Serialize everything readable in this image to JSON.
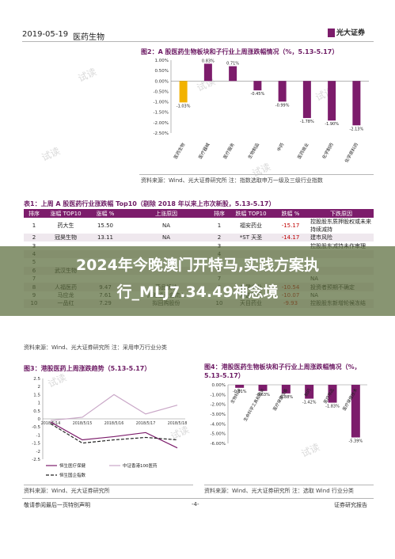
{
  "header": {
    "date": "2019-05-19",
    "category": "医药生物",
    "logo": "光大证券"
  },
  "fig2": {
    "title": "图2：A 股医药生物板块和子行业上周涨跌幅情况（%，5.13-5.17）",
    "source": "资料来源：Wind、光大证券研究所    注：指数选取申万一级及三级行业指数",
    "chart_data": {
      "type": "bar",
      "categories": [
        "医药生物",
        "医疗器械",
        "医疗服务",
        "生物制品",
        "中药",
        "医药商业",
        "化学制药",
        "化学原料药"
      ],
      "values": [
        -1.03,
        0.83,
        0.71,
        -0.45,
        -0.99,
        -1.78,
        -1.9,
        -2.13
      ],
      "value_labels": [
        "-1.03%",
        "0.83%",
        "0.71%",
        "-0.45%",
        "-0.99%",
        "-1.78%",
        "-1.90%",
        "-2.13%"
      ],
      "ylim": [
        -2.5,
        1.0
      ],
      "ytick_labels": [
        "1.00%",
        "0.50%",
        "0.00%",
        "-0.50%",
        "-1.00%",
        "-1.50%",
        "-2.00%",
        "-2.50%"
      ],
      "colors": {
        "highlight": "#f2b200",
        "normal": "#7c1c6b"
      }
    }
  },
  "table1": {
    "title": "表1：上周 A 股医药行业涨跌幅 Top10（剔除 2018 年以来上市次新股，5.13-5.17）",
    "headers": [
      "排序",
      "涨幅 TOP10",
      "涨幅 %",
      "上涨原因",
      "排序",
      "跌幅 TOP10",
      "跌幅 %",
      "下跌原因"
    ],
    "rows": [
      [
        "1",
        "药大生",
        "15.50",
        "NA",
        "1",
        "福安药业",
        "-15.17",
        "控股股东质押股权或未来持续减持"
      ],
      [
        "2",
        "冠昊生物",
        "13.11",
        "NA",
        "2",
        "*ST 天圣",
        "-14.17",
        "建市风险"
      ],
      [
        "3",
        "",
        "",
        "",
        "3",
        "",
        "",
        "控股股东减持未作审理"
      ],
      [
        "4",
        "",
        "",
        "",
        "4",
        "",
        "",
        ""
      ],
      [
        "5",
        "",
        "",
        "",
        "5",
        "",
        "",
        ""
      ],
      [
        "6",
        "武汉生物",
        "",
        "",
        "6",
        "",
        "",
        ""
      ],
      [
        "7",
        "",
        "",
        "",
        "7",
        "",
        "",
        "NA"
      ],
      [
        "8",
        "人福医药",
        "9.47",
        "药品板块",
        "8",
        "金健米业",
        "-10.54",
        "投资者预期不确定"
      ],
      [
        "9",
        "马应龙",
        "7.61",
        "沪港通资金流入",
        "9",
        "方盛制药",
        "-10.07",
        "NA"
      ],
      [
        "10",
        "一品红",
        "7.29",
        "拟回购股份",
        "10",
        "天目药业",
        "-9.93",
        "控股股东新增轮候冻结"
      ]
    ],
    "source": "资料来源：Wind、光大证券研究所  注：采用申万行业分类"
  },
  "banner": {
    "line1": "2024年今晚澳门开特马,实践方案执",
    "line2": "行_MLJ7.34.49神念境"
  },
  "fig3": {
    "title": "图3：港股医药上周涨跌趋势（5.13-5.17）",
    "source": "资料来源：Wind、光大证券研究所",
    "chart_data": {
      "type": "line",
      "x": [
        "2018/5/14",
        "2018/5/15",
        "2018/5/16",
        "2018/5/17",
        "2018/5/18"
      ],
      "xtick_labels": [
        "2018/5/14",
        "2018/5/15",
        "2018/5/16",
        "2018/5/17",
        "2018/5/18"
      ],
      "ylim": [
        -2.5,
        2.5
      ],
      "ytick_labels": [
        "2.5",
        "2",
        "1.5",
        "1",
        "0.5",
        "0",
        "-0.5",
        "-1",
        "-1.5",
        "-2",
        "-2.5"
      ],
      "series": [
        {
          "name": "恒生医疗保健",
          "values": [
            -0.2,
            -1.3,
            -1.1,
            -0.85,
            -1.8
          ],
          "color": "#7c1c6b"
        },
        {
          "name": "中证香港100医药",
          "values": [
            -0.1,
            0.1,
            1.5,
            0.3,
            0.85
          ],
          "color": "#c9a7c7"
        },
        {
          "name": "恒生国企指数",
          "values": [
            -0.3,
            -1.5,
            -1.3,
            -1.15,
            -1.3
          ],
          "color": "#222222"
        }
      ]
    }
  },
  "fig4": {
    "title": "图4：港股医药生物板块和子行业上周涨跌幅情况（%，5.13-5.17）",
    "source": "资料来源：Wind、光大证券研究所  注：选取 Wind 行业分类",
    "chart_data": {
      "type": "bar",
      "categories": [
        "生物科技",
        "生命科学工具和服务",
        "医疗保健设备",
        "制药",
        "医疗用品",
        "医疗保健技术"
      ],
      "values": [
        -0.31,
        -0.63,
        -0.88,
        -1.42,
        -1.83,
        -5.39
      ],
      "value_labels": [
        "-0.31%",
        "-0.63%",
        "-0.88%",
        "-1.42%",
        "-1.83%",
        "-5.39%"
      ],
      "ylim": [
        -6,
        0
      ],
      "ytick_labels": [
        "0.00%",
        "-1.00%",
        "-2.00%",
        "-3.00%",
        "-4.00%",
        "-5.00%",
        "-6.00%"
      ],
      "color": "#7c1c6b"
    }
  },
  "footer": {
    "left": "敬请参阅最后一页特别声明",
    "center": "-4-",
    "right": "证券研究报告"
  },
  "watermark": "试读"
}
